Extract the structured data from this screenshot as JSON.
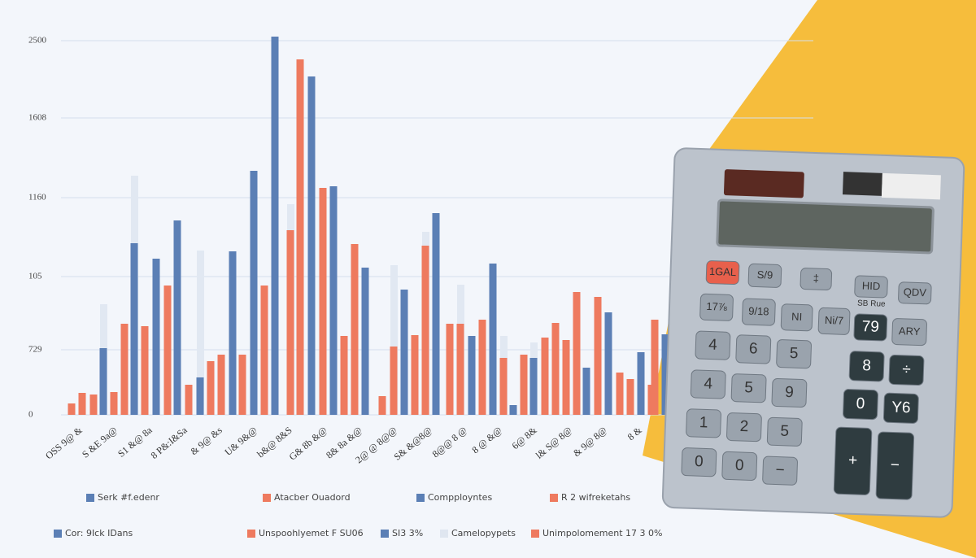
{
  "y_axis_labels": [
    "2500",
    "1608",
    "1160",
    "105",
    "729",
    "0"
  ],
  "x_axis_labels": [
    "OSS 9@ &",
    "S &E 9a@",
    "S1 &@ 8a",
    "8 P&:I&Sa",
    "& 9@ &s",
    "U& 9&@",
    "b&@ 8&S",
    "G& 8b &@",
    "8& 8a &@",
    "2@ @ 8@@",
    "S& &@8@",
    "8@@ 8 @",
    "8 @ &@",
    "6@ 8&",
    "l& S@ 8@",
    "& 9@ 8@",
    "8 &"
  ],
  "legend": [
    {
      "label": "Serk #f.edenr",
      "color": "#5b7fb5"
    },
    {
      "label": "Atacber Ouadord",
      "color": "#ee7a5f"
    },
    {
      "label": "Compployntes",
      "color": "#5b7fb5"
    },
    {
      "label": "R 2 wifreketahs",
      "color": "#ee7a5f"
    },
    {
      "label": "Cor: 9Ick IDans",
      "color": "#5b7fb5"
    },
    {
      "label": "Unspoohlyemet F SU06",
      "color": "#ee7a5f"
    },
    {
      "label": "SI3 3%",
      "color": "#5b7fb5"
    },
    {
      "label": "Camelopypets",
      "color": "#dfe6f0"
    },
    {
      "label": "Unimpolomement 17 3 0%",
      "color": "#ee7a5f"
    }
  ],
  "calculator": {
    "keys": [
      "1GAL",
      "S/9",
      "‡",
      "HID",
      "QDV",
      "17⅞",
      "9/18",
      "NI",
      "Ni/7",
      "79",
      "ARY",
      "4",
      "6",
      "5",
      "8",
      "÷",
      "4",
      "5",
      "9",
      "0",
      "Y6",
      "1",
      "2",
      "5",
      "0",
      "0",
      "−",
      "+",
      "−"
    ],
    "note": "SB Rue"
  }
}
